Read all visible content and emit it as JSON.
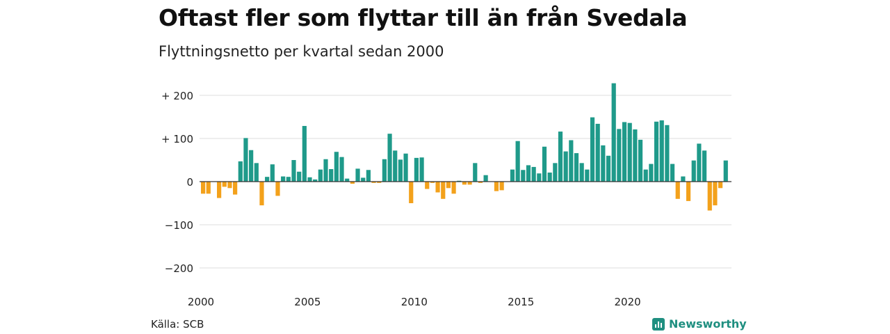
{
  "title": "Oftast fler som flyttar till än från Svedala",
  "subtitle": "Flyttningsnetto per kvartal sedan 2000",
  "source": "Källa: SCB",
  "brand": "Newsworthy",
  "colors": {
    "positive": "#1f9a8a",
    "negative": "#f3a11b",
    "grid": "#dddddd",
    "brand": "#1f8f80"
  },
  "chart_data": {
    "type": "bar",
    "x_start": "2000 Q1",
    "x_step": "quarter",
    "x_ticks": [
      {
        "label": "2000",
        "year": 2000
      },
      {
        "label": "2005",
        "year": 2005
      },
      {
        "label": "2010",
        "year": 2010
      },
      {
        "label": "2015",
        "year": 2015
      },
      {
        "label": "2020",
        "year": 2020
      }
    ],
    "y_ticks": [
      {
        "label": "+ 200",
        "value": 200
      },
      {
        "label": "+ 100",
        "value": 100
      },
      {
        "label": "0",
        "value": 0
      },
      {
        "label": "−100",
        "value": -100
      },
      {
        "label": "−200",
        "value": -200
      }
    ],
    "ylim": [
      -220,
      230
    ],
    "grid": true,
    "values": [
      -28,
      -28,
      0,
      -38,
      -12,
      -15,
      -30,
      47,
      101,
      73,
      43,
      -55,
      11,
      40,
      -33,
      12,
      11,
      50,
      23,
      129,
      10,
      5,
      28,
      52,
      29,
      69,
      57,
      7,
      -5,
      30,
      9,
      27,
      -3,
      -3,
      52,
      111,
      72,
      51,
      65,
      -50,
      55,
      56,
      -17,
      -3,
      -25,
      -40,
      -15,
      -28,
      2,
      -7,
      -7,
      43,
      -3,
      15,
      0,
      -22,
      -20,
      0,
      28,
      94,
      27,
      38,
      34,
      19,
      81,
      21,
      43,
      116,
      70,
      96,
      66,
      43,
      28,
      149,
      134,
      84,
      60,
      228,
      122,
      138,
      136,
      121,
      97,
      28,
      41,
      139,
      142,
      131,
      41,
      -40,
      12,
      -45,
      49,
      88,
      72,
      -67,
      -55,
      -15,
      49
    ]
  }
}
